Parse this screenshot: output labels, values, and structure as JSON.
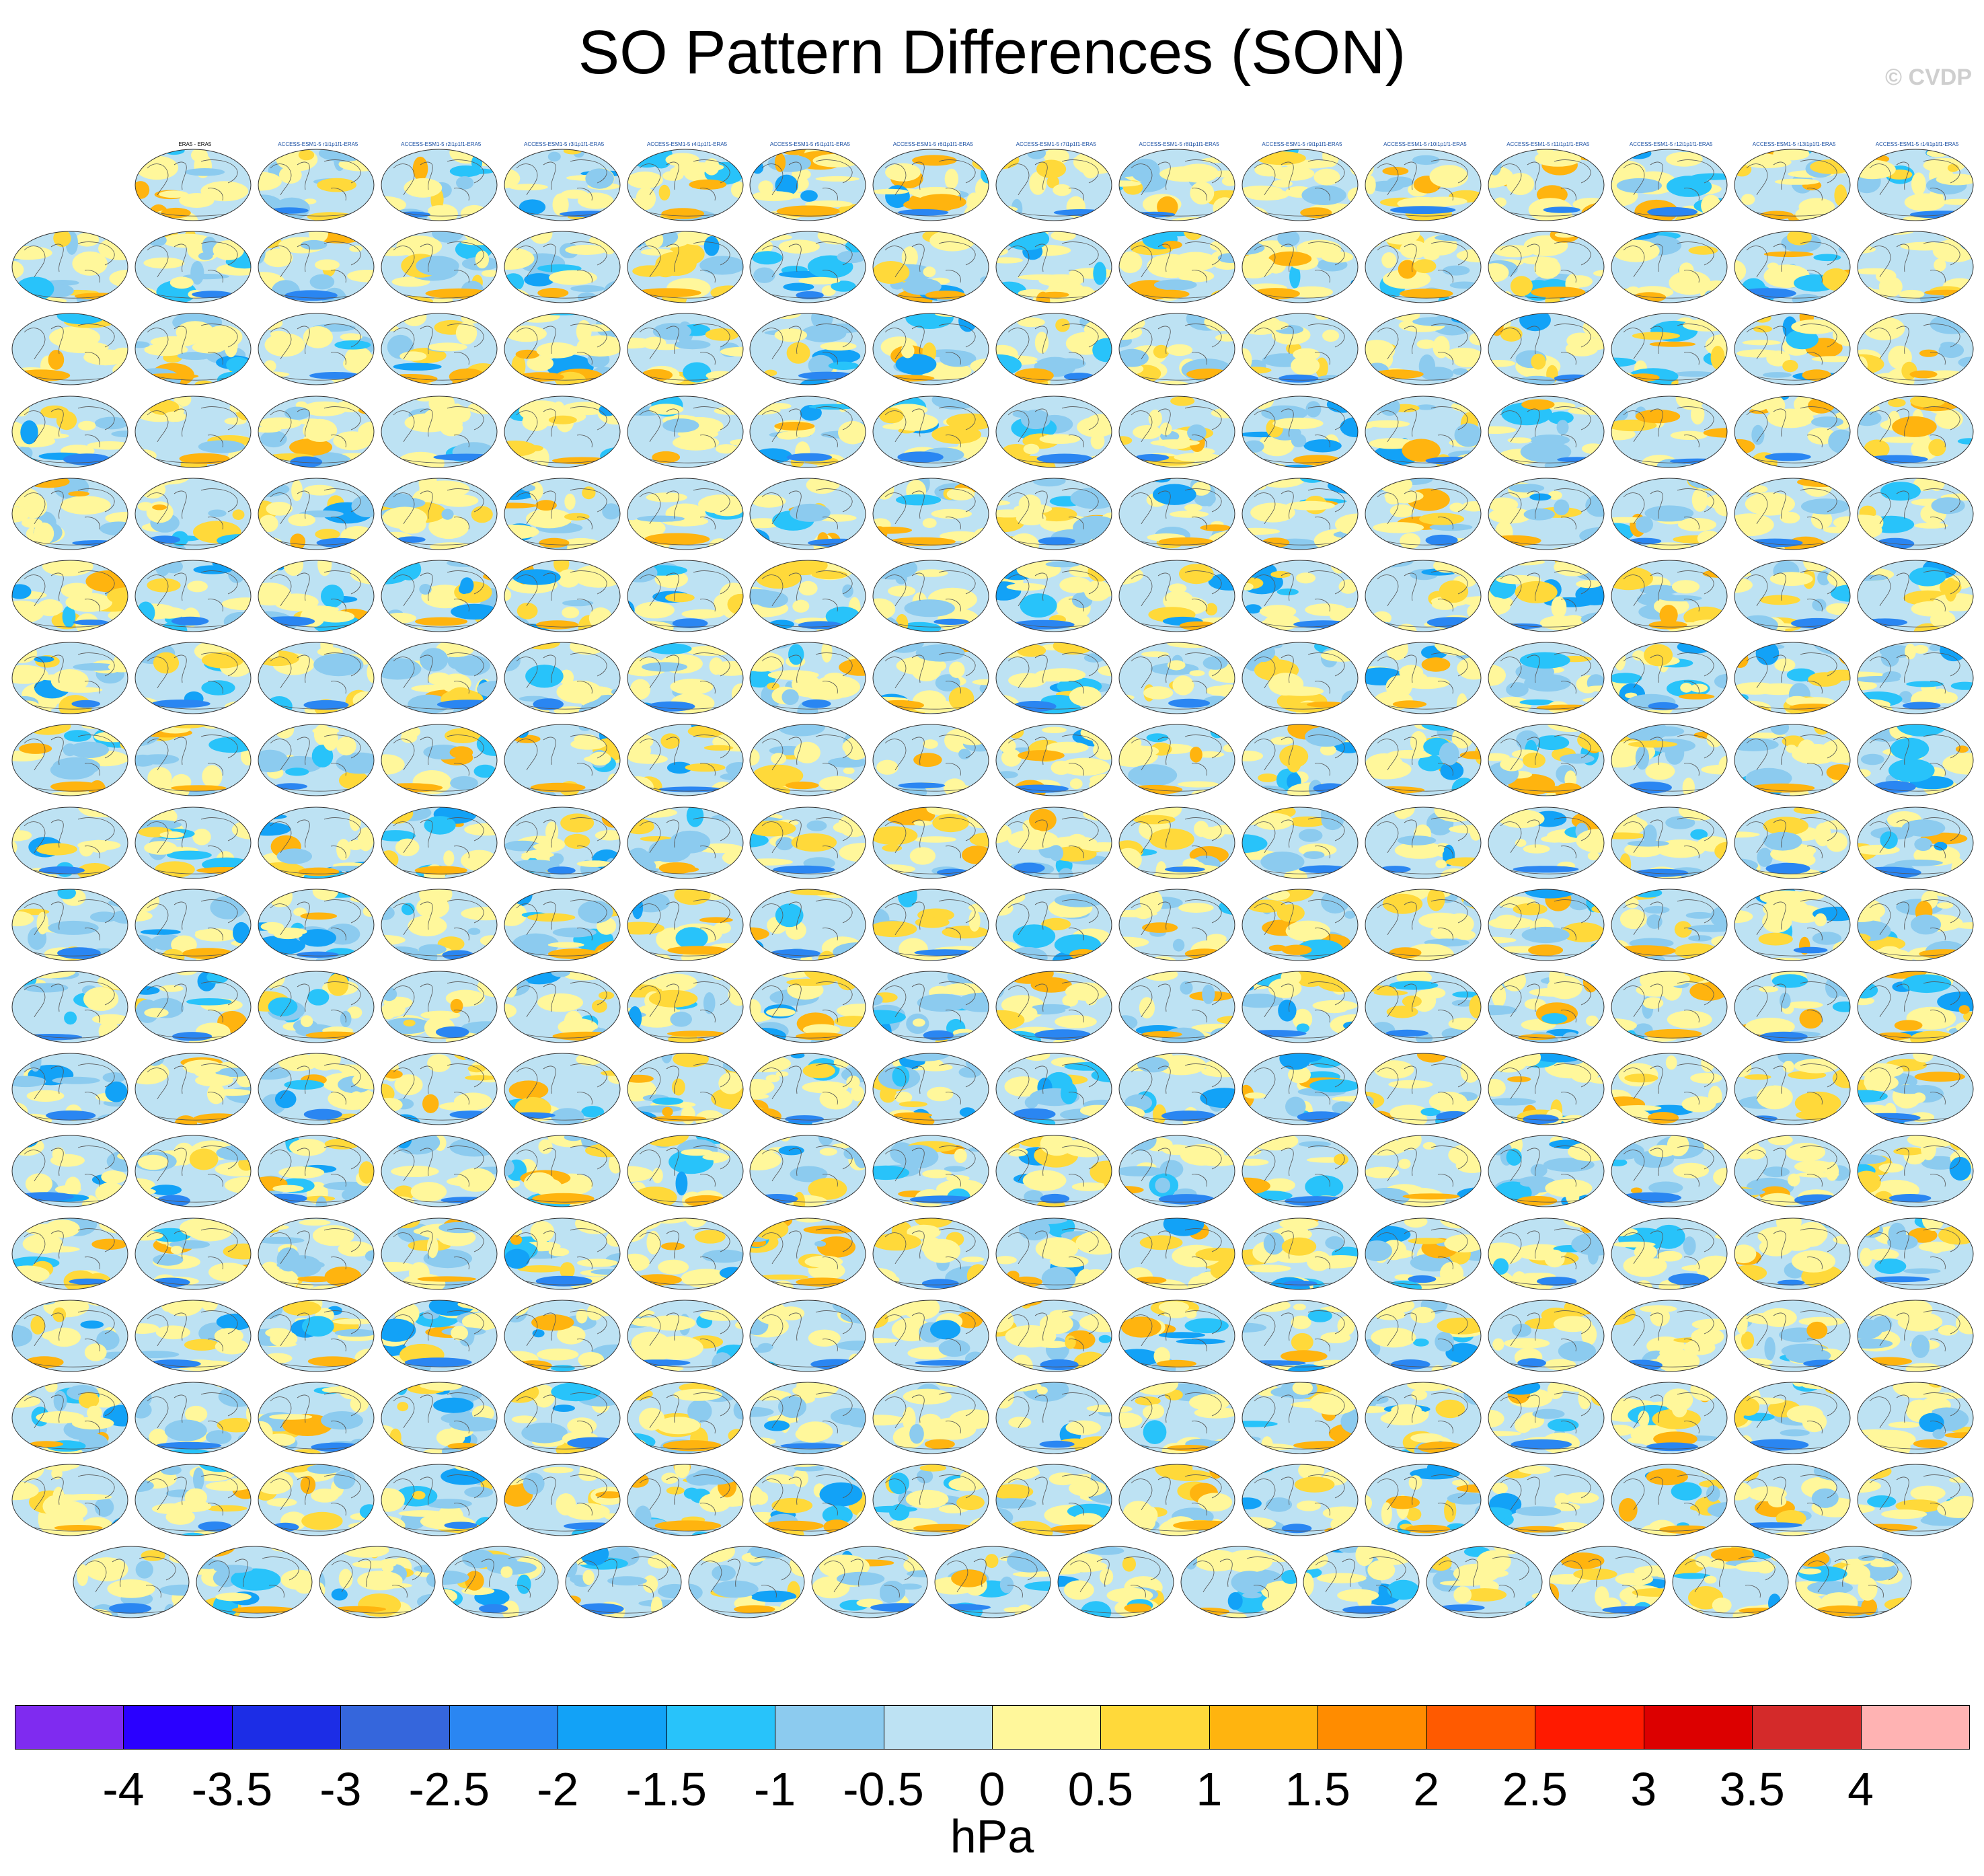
{
  "figure": {
    "title": "SO Pattern Differences (SON)",
    "watermark": "© CVDP",
    "units": "hPa"
  },
  "colorbar": {
    "labels": [
      "-4",
      "-3.5",
      "-3",
      "-2.5",
      "-2",
      "-1.5",
      "-1",
      "-0.5",
      "0",
      "0.5",
      "1",
      "1.5",
      "2",
      "2.5",
      "3",
      "3.5",
      "4"
    ],
    "colors": [
      "#7f2bf0",
      "#2a00ff",
      "#1c2de6",
      "#3566dc",
      "#2a86f2",
      "#12a2f7",
      "#28c3fa",
      "#8ccbef",
      "#bde2f3",
      "#fff79b",
      "#ffd93a",
      "#ffb40f",
      "#ff8c00",
      "#ff5a00",
      "#ff1a00",
      "#dc0000",
      "#d42a2a",
      "#ffb3b3"
    ]
  },
  "panels": {
    "row_counts": [
      15,
      16,
      16,
      16,
      16,
      16,
      16,
      16,
      16,
      16,
      16,
      16,
      16,
      16,
      16,
      16,
      16,
      15
    ],
    "group_colors": {
      "obs": "#000000",
      "access": "#1a4fa3",
      "canesm": "#6fa8dc",
      "cesm1": "#1a4fa3",
      "cesm2": "#b08de0",
      "csiro": "#b08de0"
    },
    "first_title": "ERA5 - ERA5",
    "titles_rows": [
      [
        "ERA5 - ERA5",
        "ACCESS-ESM1-5 r1i1p1f1-ERA5",
        "ACCESS-ESM1-5 r2i1p1f1-ERA5",
        "ACCESS-ESM1-5 r3i1p1f1-ERA5",
        "ACCESS-ESM1-5 r4i1p1f1-ERA5",
        "ACCESS-ESM1-5 r5i1p1f1-ERA5",
        "ACCESS-ESM1-5 r6i1p1f1-ERA5",
        "ACCESS-ESM1-5 r7i1p1f1-ERA5",
        "ACCESS-ESM1-5 r8i1p1f1-ERA5",
        "ACCESS-ESM1-5 r9i1p1f1-ERA5",
        "ACCESS-ESM1-5 r10i1p1f1-ERA5",
        "ACCESS-ESM1-5 r11i1p1f1-ERA5",
        "ACCESS-ESM1-5 r12i1p1f1-ERA5",
        "ACCESS-ESM1-5 r13i1p1f1-ERA5",
        "ACCESS-ESM1-5 r14i1p1f1-ERA5"
      ]
    ]
  }
}
